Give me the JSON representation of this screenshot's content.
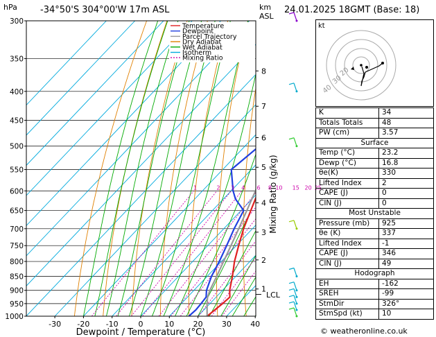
{
  "header": {
    "hpa_label": "hPa",
    "location": "-34°50'S  304°00'W  17m  ASL",
    "km_label": "km",
    "asl_label": "ASL",
    "datetime": "24.01.2025  18GMT  (Base: 18)"
  },
  "axes": {
    "x_label": "Dewpoint / Temperature (°C)",
    "mixing_ratio_label": "Mixing Ratio (g/kg)",
    "lcl_label": "LCL"
  },
  "legend": [
    {
      "label": "Temperature",
      "color": "#e02020",
      "dash": "none"
    },
    {
      "label": "Dewpoint",
      "color": "#2040e0",
      "dash": "none"
    },
    {
      "label": "Parcel Trajectory",
      "color": "#999999",
      "dash": "none"
    },
    {
      "label": "Dry Adiabat",
      "color": "#e08000",
      "dash": "none"
    },
    {
      "label": "Wet Adiabat",
      "color": "#00aa00",
      "dash": "none"
    },
    {
      "label": "Isotherm",
      "color": "#00aadd",
      "dash": "none"
    },
    {
      "label": "Mixing Ratio",
      "color": "#cc00aa",
      "dash": "2,2"
    }
  ],
  "chart_data": {
    "type": "line",
    "title": "-34°50'S  304°00'W  17m  ASL",
    "xlabel": "Dewpoint / Temperature (°C)",
    "ylabel": "hPa",
    "y_scale": "log-pressure",
    "ylim": [
      1000,
      300
    ],
    "xlim": [
      -35,
      40
    ],
    "pressure_ticks": [
      300,
      350,
      400,
      450,
      500,
      550,
      600,
      650,
      700,
      750,
      800,
      850,
      900,
      950,
      1000
    ],
    "temp_ticks": [
      -30,
      -20,
      -10,
      0,
      10,
      20,
      30,
      40
    ],
    "km_ticks": [
      {
        "km": "1",
        "p": 895
      },
      {
        "km": "2",
        "p": 795
      },
      {
        "km": "3",
        "p": 710
      },
      {
        "km": "4",
        "p": 630
      },
      {
        "km": "5",
        "p": 545
      },
      {
        "km": "6",
        "p": 483
      },
      {
        "km": "7",
        "p": 425
      },
      {
        "km": "8",
        "p": 368
      }
    ],
    "mixing_ratio_values": [
      "1",
      "2",
      "3",
      "4",
      "6",
      "8",
      "10",
      "15",
      "20",
      "25"
    ],
    "series": [
      {
        "name": "Temperature",
        "color": "#e02020",
        "points": [
          [
            1000,
            23.2
          ],
          [
            975,
            23.8
          ],
          [
            950,
            24.4
          ],
          [
            925,
            24.8
          ],
          [
            900,
            22.5
          ],
          [
            850,
            18.8
          ],
          [
            800,
            14.6
          ],
          [
            750,
            10.8
          ],
          [
            700,
            6.9
          ],
          [
            650,
            3.4
          ],
          [
            600,
            -0.4
          ],
          [
            550,
            -4.4
          ],
          [
            500,
            -9.0
          ],
          [
            450,
            -13.8
          ],
          [
            400,
            -19.5
          ],
          [
            350,
            -26.6
          ],
          [
            300,
            -35.0
          ]
        ]
      },
      {
        "name": "Dewpoint",
        "color": "#2040e0",
        "points": [
          [
            1000,
            16.8
          ],
          [
            975,
            17.2
          ],
          [
            950,
            16.9
          ],
          [
            925,
            16.5
          ],
          [
            900,
            14.4
          ],
          [
            850,
            11.5
          ],
          [
            800,
            9.3
          ],
          [
            750,
            6.6
          ],
          [
            700,
            3.6
          ],
          [
            650,
            0.9
          ],
          [
            620,
            -5.8
          ],
          [
            600,
            -9.3
          ],
          [
            550,
            -17.0
          ],
          [
            500,
            -15.0
          ],
          [
            450,
            -21.0
          ],
          [
            400,
            -28.0
          ],
          [
            350,
            -34.5
          ],
          [
            300,
            -42.0
          ]
        ]
      },
      {
        "name": "Parcel Trajectory",
        "color": "#999999",
        "points": [
          [
            1000,
            23.2
          ],
          [
            950,
            19.0
          ],
          [
            925,
            17.0
          ],
          [
            900,
            15.6
          ],
          [
            850,
            13.3
          ],
          [
            800,
            10.8
          ],
          [
            750,
            8.1
          ],
          [
            700,
            5.2
          ],
          [
            650,
            2.0
          ],
          [
            600,
            -1.5
          ],
          [
            550,
            -5.6
          ],
          [
            500,
            -10.3
          ],
          [
            450,
            -15.6
          ],
          [
            400,
            -21.8
          ],
          [
            350,
            -29.1
          ],
          [
            300,
            -37.7
          ]
        ]
      }
    ],
    "hodograph": {
      "label": "kt",
      "ring_labels": [
        "40",
        "30",
        "20"
      ]
    }
  },
  "indices": {
    "rows_top": [
      {
        "label": "K",
        "value": "34"
      },
      {
        "label": "Totals Totals",
        "value": "48"
      },
      {
        "label": "PW (cm)",
        "value": "3.57"
      }
    ],
    "surface_title": "Surface",
    "surface": [
      {
        "label": "Temp (°C)",
        "value": "23.2"
      },
      {
        "label": "Dewp (°C)",
        "value": "16.8"
      },
      {
        "label": "θe(K)",
        "value": "330"
      },
      {
        "label": "Lifted Index",
        "value": "2"
      },
      {
        "label": "CAPE (J)",
        "value": "0"
      },
      {
        "label": "CIN (J)",
        "value": "0"
      }
    ],
    "unstable_title": "Most Unstable",
    "unstable": [
      {
        "label": "Pressure (mb)",
        "value": "925"
      },
      {
        "label": "θe (K)",
        "value": "337"
      },
      {
        "label": "Lifted Index",
        "value": "-1"
      },
      {
        "label": "CAPE (J)",
        "value": "346"
      },
      {
        "label": "CIN (J)",
        "value": "49"
      }
    ],
    "hodo_title": "Hodograph",
    "hodo": [
      {
        "label": "EH",
        "value": "-162"
      },
      {
        "label": "SREH",
        "value": "-99"
      },
      {
        "label": "StmDir",
        "value": "326°"
      },
      {
        "label": "StmSpd (kt)",
        "value": "10"
      }
    ]
  },
  "footer": {
    "copyright": "© weatheronline.co.uk"
  }
}
